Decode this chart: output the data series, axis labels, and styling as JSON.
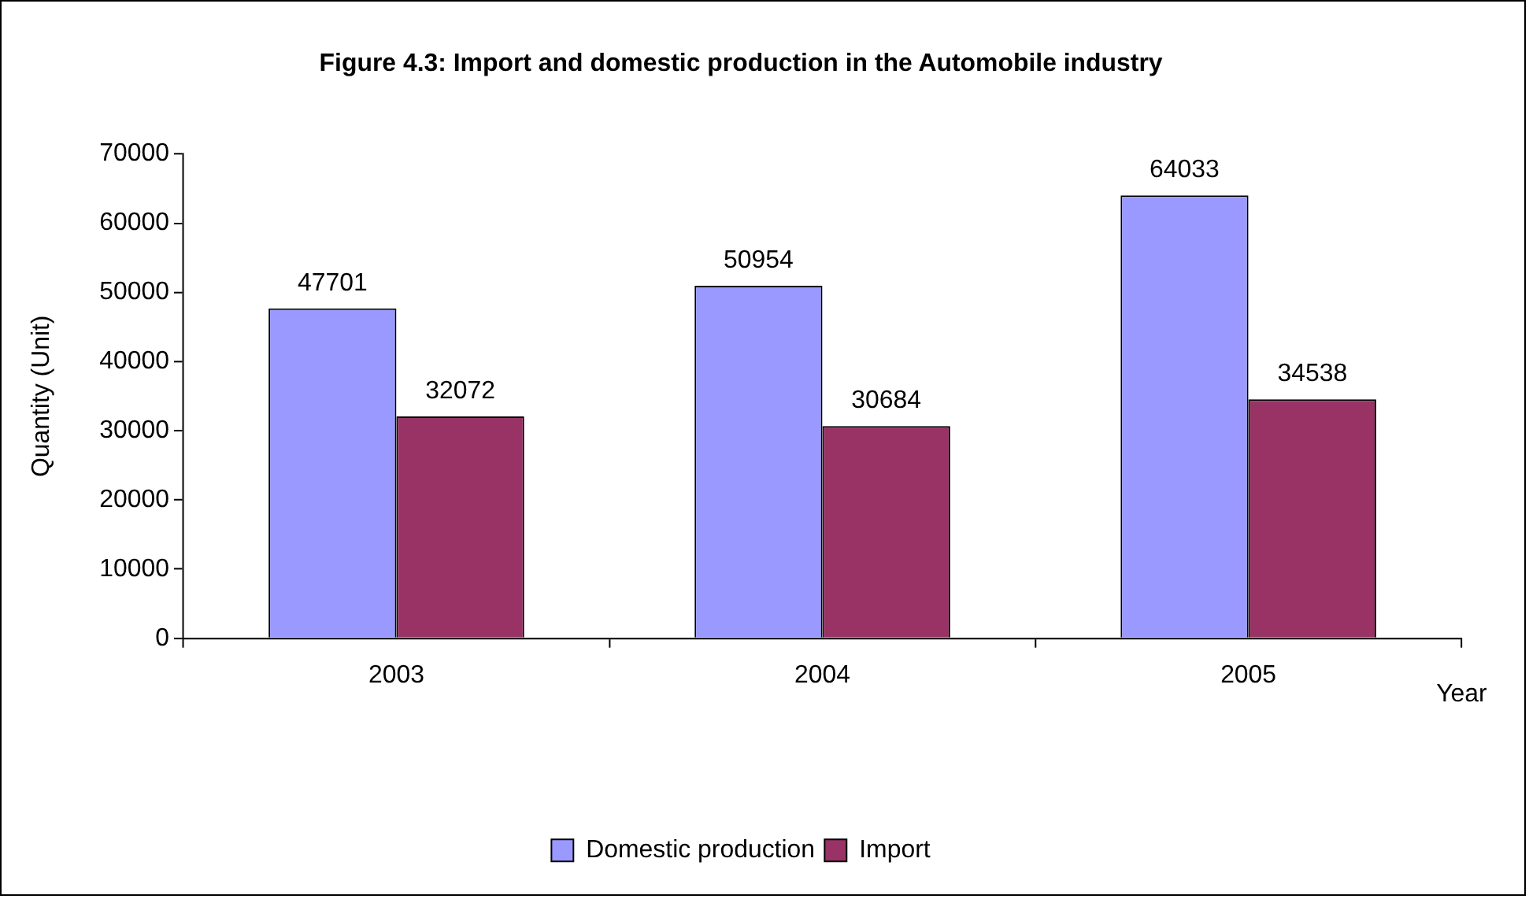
{
  "chart_data": {
    "type": "bar",
    "title": "Figure 4.3: Import and domestic production in the Automobile industry",
    "xlabel": "Year",
    "ylabel": "Quantity (Unit)",
    "categories": [
      "2003",
      "2004",
      "2005"
    ],
    "series": [
      {
        "name": "Domestic production",
        "color": "#9999ff",
        "values": [
          47701,
          50954,
          64033
        ]
      },
      {
        "name": "Import",
        "color": "#993366",
        "values": [
          32072,
          30684,
          34538
        ]
      }
    ],
    "ylim": [
      0,
      70000
    ],
    "yticks": [
      0,
      10000,
      20000,
      30000,
      40000,
      50000,
      60000,
      70000
    ],
    "grid": false,
    "legend": "bottom",
    "data_labels": true
  }
}
